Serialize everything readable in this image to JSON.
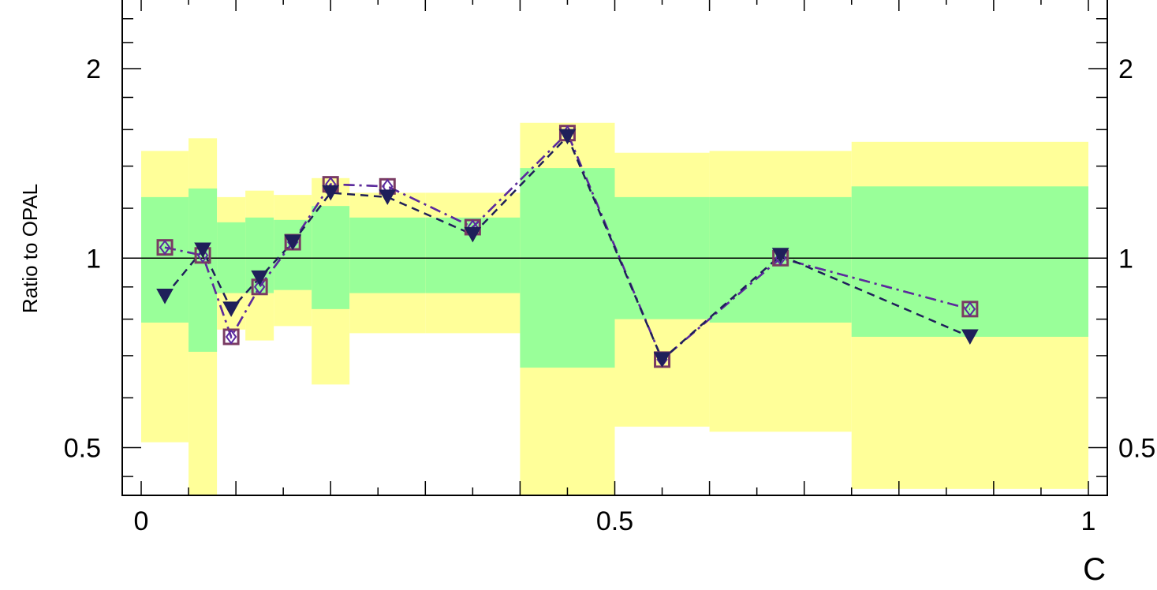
{
  "chart_data": {
    "type": "scatter",
    "xlabel": "C",
    "ylabel": "Ratio to OPAL",
    "x_scale": "linear",
    "y_scale": "log",
    "xlim": [
      -0.02,
      1.02
    ],
    "ylim": [
      0.42,
      2.6
    ],
    "x_ticks": [
      {
        "value": 0,
        "label": "0"
      },
      {
        "value": 0.5,
        "label": "0.5"
      },
      {
        "value": 1,
        "label": "1"
      }
    ],
    "y_ticks": [
      {
        "value": 0.5,
        "label": "0.5"
      },
      {
        "value": 1,
        "label": "1"
      },
      {
        "value": 2,
        "label": "2"
      }
    ],
    "reference_line": 1.0,
    "uncertainty_bands": [
      {
        "x0": 0.0,
        "x1": 0.05,
        "inner_lo": 0.79,
        "inner_hi": 1.25,
        "outer_lo": 0.51,
        "outer_hi": 1.48
      },
      {
        "x0": 0.05,
        "x1": 0.08,
        "inner_lo": 0.71,
        "inner_hi": 1.29,
        "outer_lo": 0.35,
        "outer_hi": 1.55
      },
      {
        "x0": 0.08,
        "x1": 0.11,
        "inner_lo": 0.88,
        "inner_hi": 1.14,
        "outer_lo": 0.77,
        "outer_hi": 1.25
      },
      {
        "x0": 0.11,
        "x1": 0.14,
        "inner_lo": 0.88,
        "inner_hi": 1.16,
        "outer_lo": 0.74,
        "outer_hi": 1.28
      },
      {
        "x0": 0.14,
        "x1": 0.18,
        "inner_lo": 0.89,
        "inner_hi": 1.15,
        "outer_lo": 0.78,
        "outer_hi": 1.26
      },
      {
        "x0": 0.18,
        "x1": 0.22,
        "inner_lo": 0.83,
        "inner_hi": 1.21,
        "outer_lo": 0.63,
        "outer_hi": 1.34
      },
      {
        "x0": 0.22,
        "x1": 0.3,
        "inner_lo": 0.88,
        "inner_hi": 1.16,
        "outer_lo": 0.76,
        "outer_hi": 1.27
      },
      {
        "x0": 0.3,
        "x1": 0.4,
        "inner_lo": 0.88,
        "inner_hi": 1.16,
        "outer_lo": 0.76,
        "outer_hi": 1.27
      },
      {
        "x0": 0.4,
        "x1": 0.5,
        "inner_lo": 0.67,
        "inner_hi": 1.39,
        "outer_lo": 0.35,
        "outer_hi": 1.64
      },
      {
        "x0": 0.5,
        "x1": 0.6,
        "inner_lo": 0.8,
        "inner_hi": 1.25,
        "outer_lo": 0.54,
        "outer_hi": 1.47
      },
      {
        "x0": 0.6,
        "x1": 0.75,
        "inner_lo": 0.79,
        "inner_hi": 1.25,
        "outer_lo": 0.53,
        "outer_hi": 1.48
      },
      {
        "x0": 0.75,
        "x1": 1.0,
        "inner_lo": 0.75,
        "inner_hi": 1.3,
        "outer_lo": 0.43,
        "outer_hi": 1.53
      }
    ],
    "x": [
      0.025,
      0.065,
      0.095,
      0.125,
      0.16,
      0.2,
      0.26,
      0.35,
      0.45,
      0.55,
      0.675,
      0.875
    ],
    "series": [
      {
        "marker": "open-square",
        "line": "dash-dot",
        "color": "#7a3b63",
        "values": [
          1.04,
          1.01,
          0.75,
          0.9,
          1.06,
          1.31,
          1.3,
          1.12,
          1.58,
          0.69,
          1.0,
          0.83
        ]
      },
      {
        "marker": "open-diamond",
        "line": "dash-dot",
        "color": "#5a2aa0",
        "values": [
          1.04,
          1.01,
          0.75,
          0.9,
          1.06,
          1.31,
          1.3,
          1.12,
          1.58,
          0.69,
          1.0,
          0.83
        ]
      },
      {
        "marker": "down-triangle",
        "line": "dashed",
        "color": "#1f1f5a",
        "values": [
          0.87,
          1.03,
          0.83,
          0.93,
          1.06,
          1.27,
          1.25,
          1.09,
          1.56,
          0.69,
          1.01,
          0.75
        ]
      }
    ],
    "colors": {
      "inner_band": "#99ff99",
      "outer_band": "#ffff99",
      "frame": "#000000"
    }
  }
}
